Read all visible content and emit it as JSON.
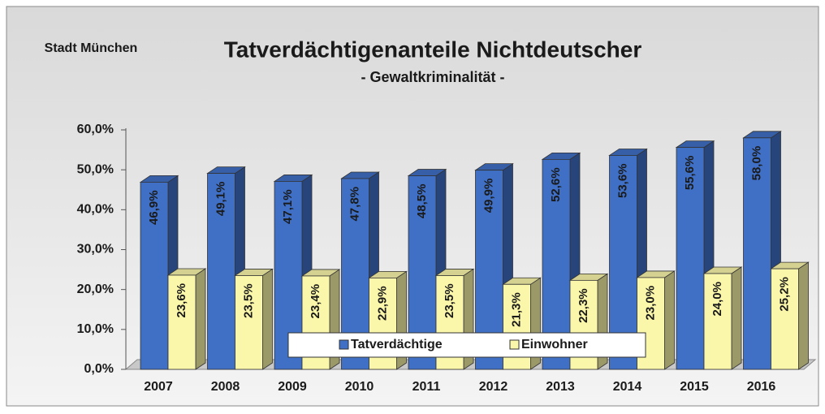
{
  "chart_data": {
    "type": "bar3d",
    "title": "Tatverdächtigenanteile Nichtdeutscher",
    "subtitle": "- Gewaltkriminalität -",
    "annotations": [
      "Stadt München"
    ],
    "categories": [
      "2007",
      "2008",
      "2009",
      "2010",
      "2011",
      "2012",
      "2013",
      "2014",
      "2015",
      "2016"
    ],
    "series": [
      {
        "name": "Tatverdächtige",
        "color": "#3f70c6",
        "values": [
          46.9,
          49.1,
          47.1,
          47.8,
          48.5,
          49.9,
          52.6,
          53.6,
          55.6,
          58.0
        ],
        "value_labels": [
          "46,9%",
          "49,1%",
          "47,1%",
          "47,8%",
          "48,5%",
          "49,9%",
          "52,6%",
          "53,6%",
          "55,6%",
          "58,0%"
        ]
      },
      {
        "name": "Einwohner",
        "color": "#fbf7aa",
        "values": [
          23.6,
          23.5,
          23.4,
          22.9,
          23.5,
          21.3,
          22.3,
          23.0,
          24.0,
          25.2
        ],
        "value_labels": [
          "23,6%",
          "23,5%",
          "23,4%",
          "22,9%",
          "23,5%",
          "21,3%",
          "22,3%",
          "23,0%",
          "24,0%",
          "25,2%"
        ]
      }
    ],
    "ylim": [
      0,
      60
    ],
    "yticks": [
      {
        "value": 0,
        "label": "0,0%"
      },
      {
        "value": 10,
        "label": "10,0%"
      },
      {
        "value": 20,
        "label": "20,0%"
      },
      {
        "value": 30,
        "label": "30,0%"
      },
      {
        "value": 40,
        "label": "40,0%"
      },
      {
        "value": 50,
        "label": "50,0%"
      },
      {
        "value": 60,
        "label": "60,0%"
      }
    ],
    "grid": false,
    "legend": "bottom"
  }
}
